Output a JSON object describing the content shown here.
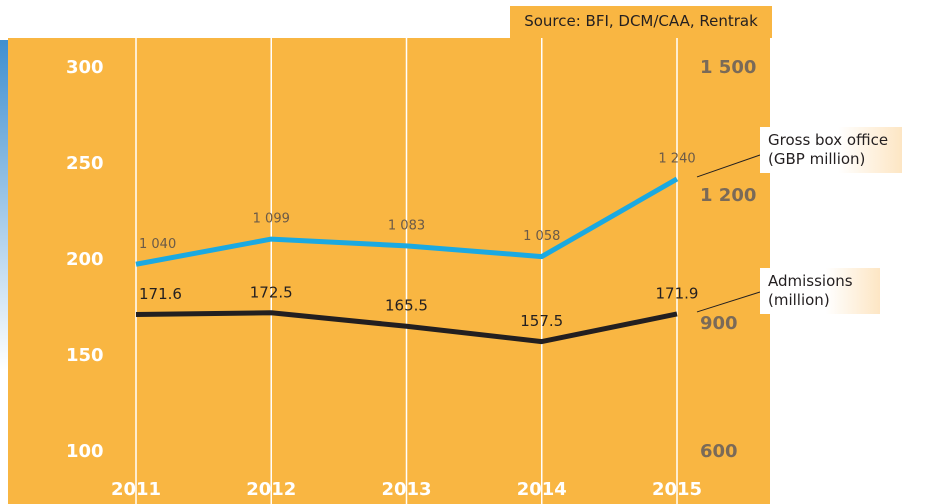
{
  "chart_data": {
    "type": "line",
    "source": "Source: BFI, DCM/CAA, Rentrak",
    "categories": [
      "2011",
      "2012",
      "2013",
      "2014",
      "2015"
    ],
    "series": [
      {
        "name": "Gross box office (GBP million)",
        "color": "#1ba9e1",
        "axis": "y2",
        "values": [
          1040,
          1099,
          1083,
          1058,
          1240
        ],
        "value_labels": [
          "1 040",
          "1 099",
          "1 083",
          "1 058",
          "1 240"
        ]
      },
      {
        "name": "Admissions (million)",
        "color": "#231f20",
        "axis": "y",
        "values": [
          171.6,
          172.5,
          165.5,
          157.5,
          171.9
        ]
      }
    ],
    "ylim": [
      100,
      300
    ],
    "yticks": [
      100,
      150,
      200,
      250,
      300
    ],
    "y2lim": [
      600,
      1500
    ],
    "y2ticks": [
      600,
      900,
      {
        "value": 1200,
        "label": "1 200"
      },
      {
        "value": 1500,
        "label": "1 500"
      }
    ],
    "grid": true,
    "background": "#f9b642"
  }
}
